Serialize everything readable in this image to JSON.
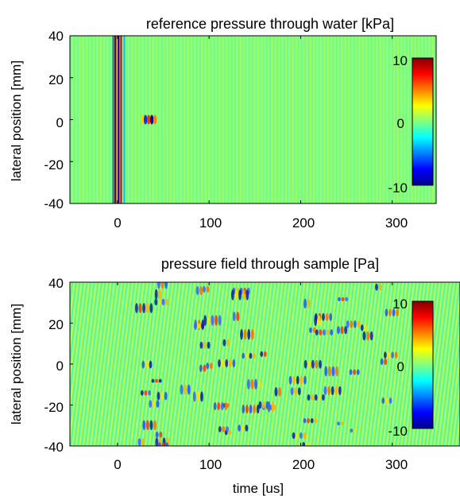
{
  "chart_data": [
    {
      "type": "heatmap",
      "title": "reference pressure through water [kPa]",
      "xlabel": "",
      "ylabel": "lateral position [mm]",
      "xlim": [
        -52,
        348
      ],
      "ylim": [
        -40,
        40
      ],
      "xticks": [
        0,
        100,
        200,
        300
      ],
      "yticks": [
        -40,
        -20,
        0,
        20,
        40
      ],
      "xtick_labels": [
        "0",
        "100",
        "200",
        "300"
      ],
      "ytick_labels": [
        "-40",
        "-20",
        "0",
        "20",
        "40"
      ],
      "colorbar": {
        "colormap": "jet",
        "range": [
          -10,
          10
        ],
        "ticks": [
          -10,
          0,
          10
        ],
        "tick_labels": [
          "-10",
          "0",
          "10"
        ],
        "placement": "inside-right"
      },
      "features": [
        {
          "kind": "plane-wave-front",
          "t_start": -6,
          "t_end": 8,
          "y_range": [
            -40,
            40
          ]
        },
        {
          "kind": "wave-packet",
          "t_center": 34,
          "y_center": 0
        }
      ]
    },
    {
      "type": "heatmap",
      "title": "pressure field through sample [Pa]",
      "xlabel": "time [us]",
      "ylabel": "lateral position [mm]",
      "xlim": [
        -52,
        348
      ],
      "ylim": [
        -40,
        40
      ],
      "xticks": [
        0,
        100,
        200,
        300
      ],
      "yticks": [
        -40,
        -20,
        0,
        20,
        40
      ],
      "xtick_labels": [
        "0",
        "100",
        "200",
        "300"
      ],
      "ytick_labels": [
        "-40",
        "-20",
        "0",
        "20",
        "40"
      ],
      "colorbar": {
        "colormap": "jet",
        "range": [
          -10,
          10
        ],
        "ticks": [
          -10,
          0,
          10
        ],
        "tick_labels": [
          "-10",
          "0",
          "10"
        ],
        "placement": "inside-right"
      },
      "features": [
        {
          "kind": "scattered-packets",
          "t_range": [
            20,
            300
          ],
          "y_range": [
            -40,
            40
          ]
        }
      ]
    }
  ]
}
